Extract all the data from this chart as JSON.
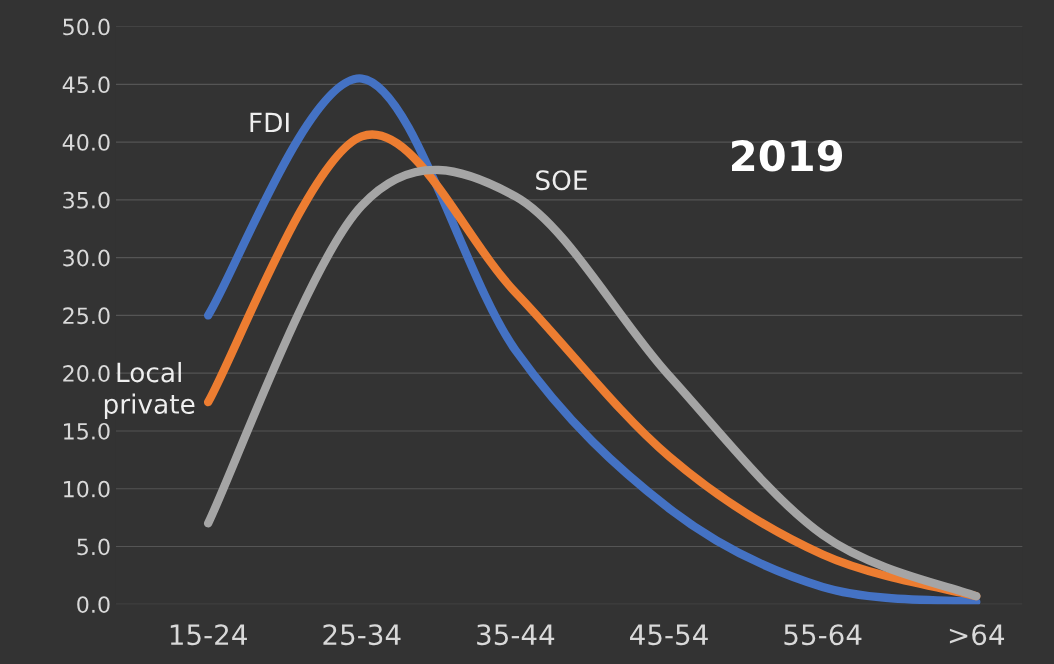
{
  "chart_data": {
    "type": "line",
    "annotations": [
      "2019"
    ],
    "categories": [
      "15-24",
      "25-34",
      "35-44",
      "45-54",
      "55-64",
      ">64"
    ],
    "series": [
      {
        "name": "FDI",
        "color": "#4472c4",
        "values": [
          25.0,
          45.5,
          22.0,
          8.3,
          1.5,
          0.2
        ]
      },
      {
        "name": "Local private",
        "color": "#ed7d31",
        "values": [
          17.5,
          40.5,
          27.0,
          12.8,
          4.3,
          0.7
        ]
      },
      {
        "name": "SOE",
        "color": "#a5a5a5",
        "values": [
          7.0,
          34.5,
          35.3,
          19.8,
          6.0,
          0.7
        ]
      }
    ],
    "ylim": [
      0,
      50
    ],
    "yticks": [
      {
        "value": 0,
        "label": "0.0"
      },
      {
        "value": 5,
        "label": "5.0"
      },
      {
        "value": 10,
        "label": "10.0"
      },
      {
        "value": 15,
        "label": "15.0"
      },
      {
        "value": 20,
        "label": "20.0"
      },
      {
        "value": 25,
        "label": "25.0"
      },
      {
        "value": 30,
        "label": "30.0"
      },
      {
        "value": 35,
        "label": "35.0"
      },
      {
        "value": 40,
        "label": "40.0"
      },
      {
        "value": 45,
        "label": "45.0"
      },
      {
        "value": 50,
        "label": "50.0"
      }
    ],
    "grid": "y",
    "legend": false,
    "marker": "none",
    "line_style": "solid"
  }
}
